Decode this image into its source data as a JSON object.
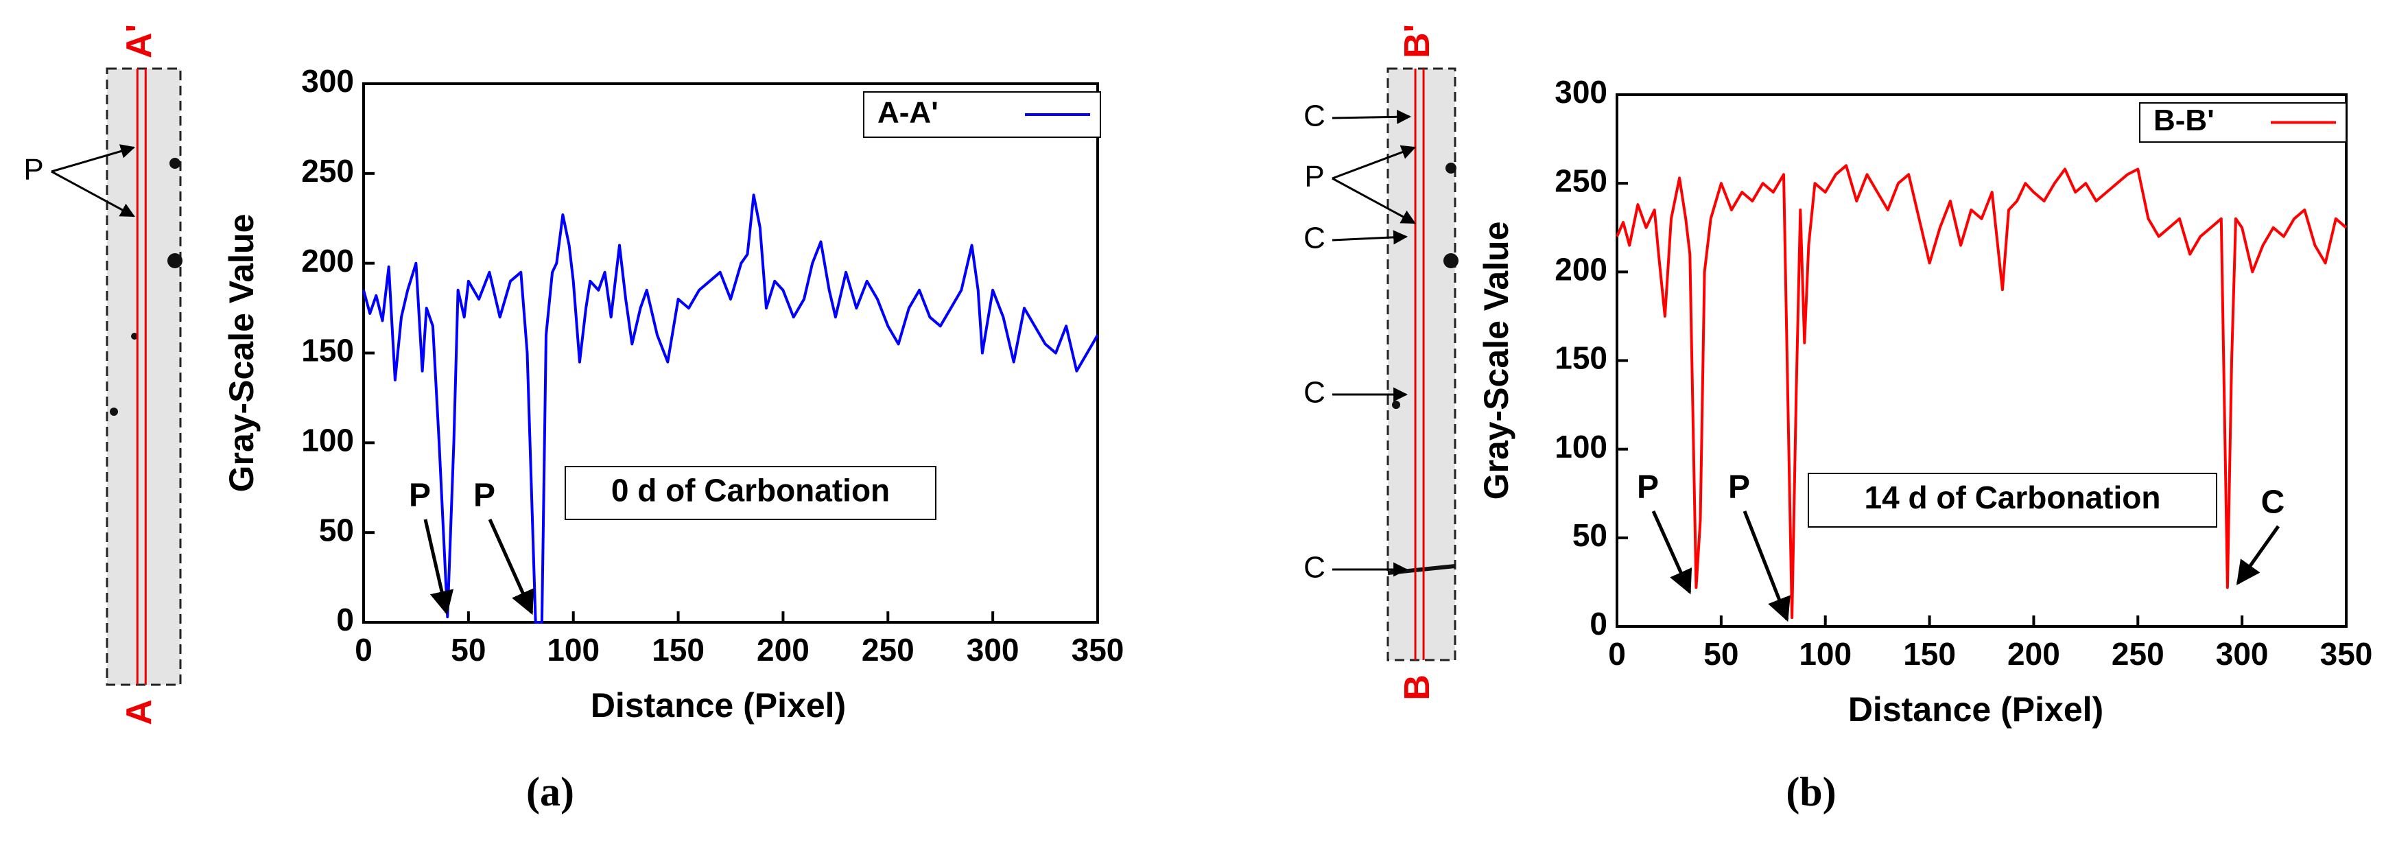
{
  "chart_data": [
    {
      "type": "line",
      "x_label": "Distance (Pixel)",
      "y_label": "Gray-Scale Value",
      "x": [
        0,
        3,
        6,
        9,
        12,
        15,
        18,
        21,
        25,
        28,
        30,
        33,
        36,
        40,
        43,
        45,
        48,
        50,
        55,
        60,
        65,
        70,
        75,
        78,
        82,
        85,
        87,
        90,
        92,
        95,
        98,
        100,
        103,
        106,
        108,
        112,
        115,
        118,
        122,
        125,
        128,
        132,
        135,
        140,
        145,
        150,
        155,
        160,
        165,
        170,
        175,
        180,
        183,
        186,
        189,
        192,
        196,
        200,
        205,
        210,
        214,
        218,
        222,
        225,
        230,
        235,
        240,
        245,
        250,
        255,
        260,
        265,
        270,
        275,
        280,
        285,
        290,
        293,
        295,
        300,
        305,
        310,
        315,
        320,
        325,
        330,
        335,
        340,
        345,
        350
      ],
      "series": [
        {
          "name": "A-A'",
          "color": "#0000ff",
          "values": [
            185,
            172,
            182,
            168,
            198,
            135,
            170,
            185,
            200,
            140,
            175,
            165,
            100,
            3,
            100,
            185,
            170,
            190,
            180,
            195,
            170,
            190,
            195,
            150,
            0,
            0,
            160,
            195,
            200,
            227,
            210,
            190,
            145,
            175,
            190,
            185,
            195,
            170,
            210,
            180,
            155,
            175,
            185,
            160,
            145,
            180,
            175,
            185,
            190,
            195,
            180,
            200,
            205,
            238,
            220,
            175,
            190,
            185,
            170,
            180,
            200,
            212,
            185,
            170,
            195,
            175,
            190,
            180,
            165,
            155,
            175,
            185,
            170,
            165,
            175,
            185,
            210,
            185,
            150,
            185,
            170,
            145,
            175,
            165,
            155,
            150,
            165,
            140,
            150,
            160
          ]
        }
      ],
      "xlim": [
        0,
        350
      ],
      "ylim": [
        0,
        300
      ],
      "xticks": [
        0,
        50,
        100,
        150,
        200,
        250,
        300,
        350
      ],
      "yticks": [
        0,
        50,
        100,
        150,
        200,
        250,
        300
      ],
      "legend": "upper right",
      "annotations": [
        "P",
        "P",
        "0 d of Carbonation"
      ],
      "panel_label": "(a)",
      "image_labels": {
        "top": "A'",
        "bottom": "A",
        "markers": [
          "P"
        ]
      }
    },
    {
      "type": "line",
      "x_label": "Distance (Pixel)",
      "y_label": "Gray-Scale Value",
      "x": [
        0,
        3,
        6,
        10,
        14,
        18,
        20,
        23,
        26,
        30,
        33,
        35,
        38,
        40,
        42,
        45,
        50,
        55,
        60,
        65,
        70,
        75,
        80,
        82,
        84,
        86,
        88,
        90,
        92,
        95,
        100,
        105,
        110,
        115,
        120,
        125,
        130,
        135,
        140,
        145,
        150,
        155,
        160,
        165,
        170,
        175,
        180,
        185,
        188,
        192,
        196,
        200,
        205,
        210,
        215,
        220,
        225,
        230,
        235,
        240,
        245,
        250,
        255,
        260,
        265,
        270,
        275,
        280,
        285,
        290,
        293,
        295,
        297,
        300,
        305,
        310,
        315,
        320,
        325,
        330,
        335,
        340,
        345,
        350
      ],
      "series": [
        {
          "name": "B-B'",
          "color": "#ff0000",
          "values": [
            220,
            228,
            215,
            238,
            225,
            235,
            210,
            175,
            230,
            253,
            230,
            210,
            22,
            60,
            200,
            230,
            250,
            235,
            245,
            240,
            250,
            245,
            255,
            130,
            5,
            130,
            235,
            160,
            215,
            250,
            245,
            255,
            260,
            240,
            255,
            245,
            235,
            250,
            255,
            230,
            205,
            225,
            240,
            215,
            235,
            230,
            245,
            190,
            235,
            240,
            250,
            245,
            240,
            250,
            258,
            245,
            250,
            240,
            245,
            250,
            255,
            258,
            230,
            220,
            225,
            230,
            210,
            220,
            225,
            230,
            22,
            150,
            230,
            225,
            200,
            215,
            225,
            220,
            230,
            235,
            215,
            205,
            230,
            225
          ]
        }
      ],
      "xlim": [
        0,
        350
      ],
      "ylim": [
        0,
        300
      ],
      "xticks": [
        0,
        50,
        100,
        150,
        200,
        250,
        300,
        350
      ],
      "yticks": [
        0,
        50,
        100,
        150,
        200,
        250,
        300
      ],
      "legend": "upper right",
      "annotations": [
        "P",
        "P",
        "C",
        "14 d of Carbonation"
      ],
      "panel_label": "(b)",
      "image_labels": {
        "top": "B'",
        "bottom": "B",
        "markers": [
          "C",
          "P",
          "C",
          "C",
          "C"
        ]
      }
    }
  ]
}
